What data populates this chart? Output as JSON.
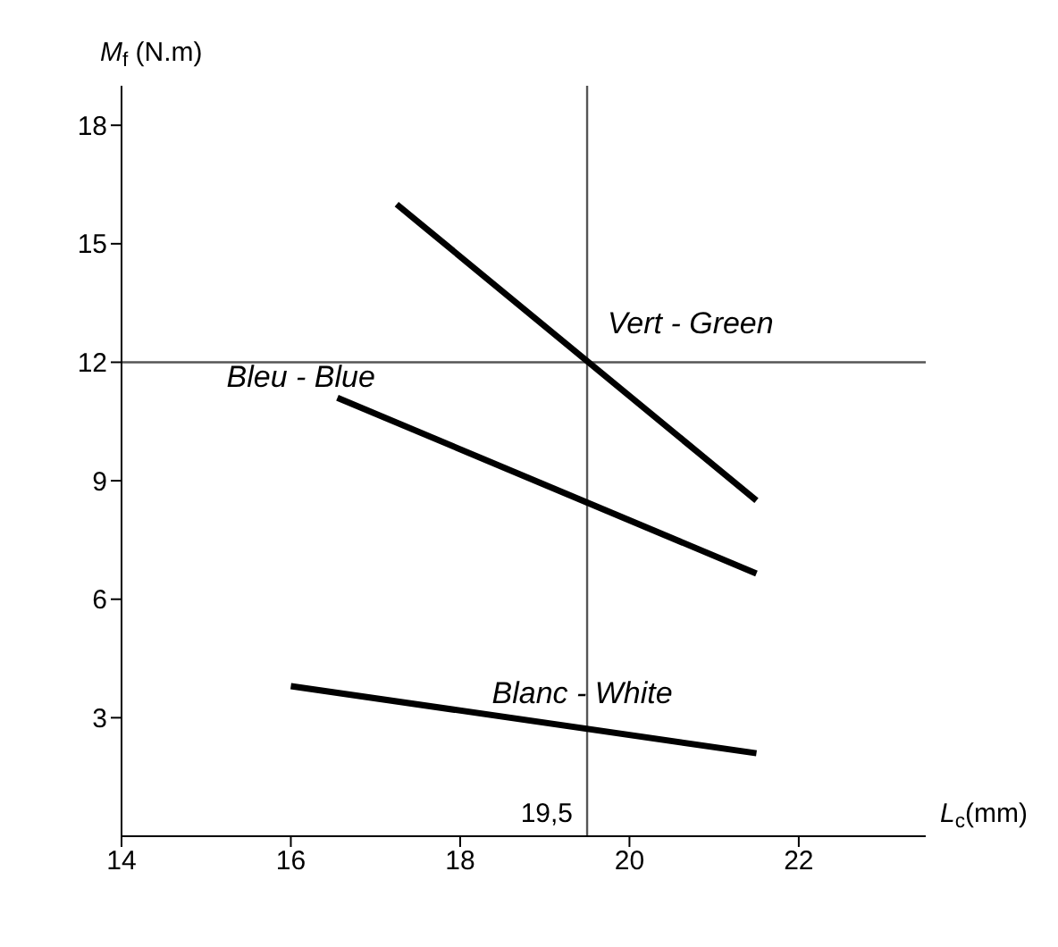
{
  "chart_data": {
    "type": "line",
    "xlabel": "L$_{c}$(mm)",
    "ylabel": "M$_{f}$ (N.m)",
    "xlim": [
      14,
      23.5
    ],
    "xticks": [
      14,
      16,
      18,
      20,
      22
    ],
    "ylim": [
      0,
      19
    ],
    "yticks": [
      3,
      6,
      9,
      12,
      15,
      18
    ],
    "grid": false,
    "legend": false,
    "marker": "none",
    "line_style": "solid",
    "series": [
      {
        "name": "Vert - Green",
        "color": "#000000",
        "x": [
          17.25,
          21.5
        ],
        "values": [
          16,
          8.5
        ]
      },
      {
        "name": "Bleu - Blue",
        "color": "#000000",
        "x": [
          16.55,
          21.5
        ],
        "values": [
          11.1,
          6.65
        ]
      },
      {
        "name": "Blanc - White",
        "color": "#000000",
        "x": [
          16,
          21.5
        ],
        "values": [
          3.8,
          2.1
        ]
      }
    ],
    "ref_lines": [
      {
        "axis": "x",
        "value": 19.5,
        "label": "19,5",
        "color": "#555555"
      },
      {
        "axis": "y",
        "value": 12,
        "color": "#555555"
      }
    ]
  }
}
